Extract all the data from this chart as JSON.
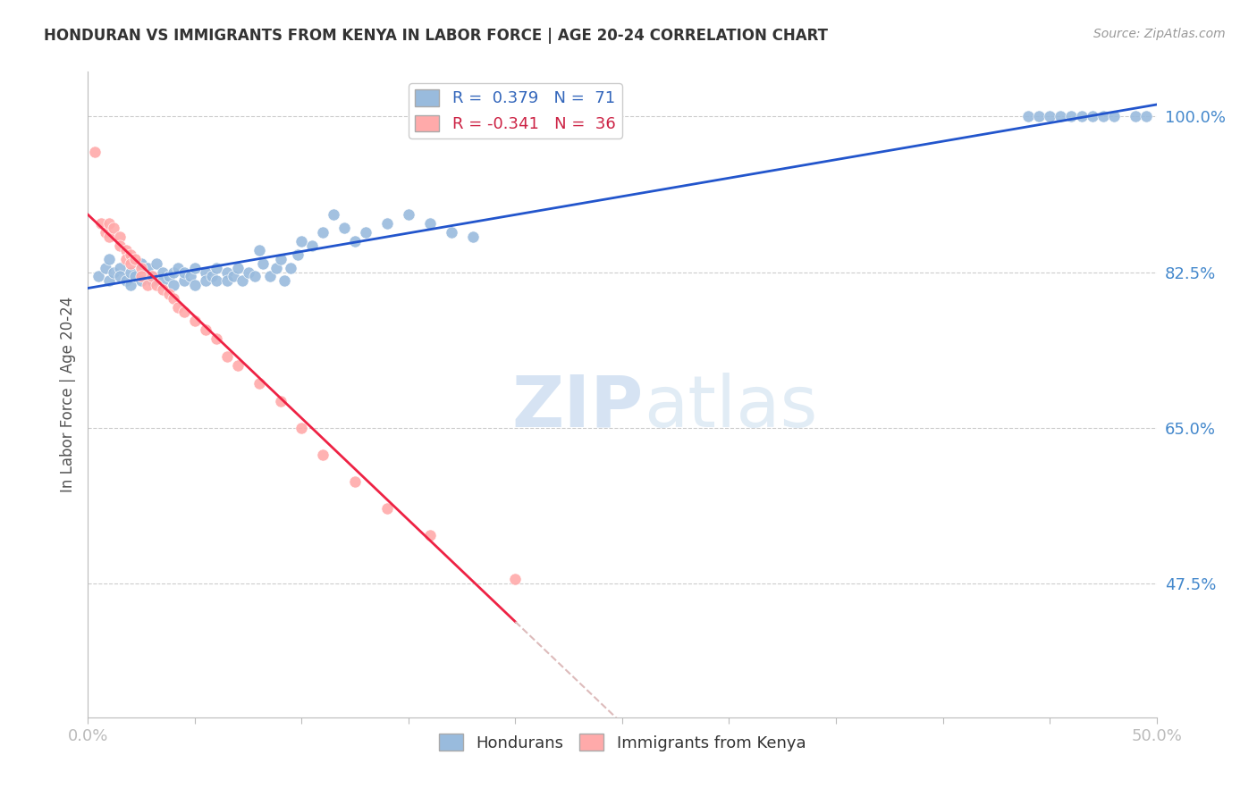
{
  "title": "HONDURAN VS IMMIGRANTS FROM KENYA IN LABOR FORCE | AGE 20-24 CORRELATION CHART",
  "source": "Source: ZipAtlas.com",
  "ylabel": "In Labor Force | Age 20-24",
  "xlim": [
    0.0,
    0.5
  ],
  "ylim": [
    0.325,
    1.05
  ],
  "yticks": [
    0.475,
    0.65,
    0.825,
    1.0
  ],
  "ytick_labels": [
    "47.5%",
    "65.0%",
    "82.5%",
    "100.0%"
  ],
  "xticks": [
    0.0,
    0.05,
    0.1,
    0.15,
    0.2,
    0.25,
    0.3,
    0.35,
    0.4,
    0.45,
    0.5
  ],
  "xtick_labels": [
    "0.0%",
    "",
    "",
    "",
    "",
    "",
    "",
    "",
    "",
    "",
    "50.0%"
  ],
  "legend_blue_label": "Hondurans",
  "legend_pink_label": "Immigrants from Kenya",
  "R_blue": 0.379,
  "N_blue": 71,
  "R_pink": -0.341,
  "N_pink": 36,
  "blue_color": "#99BBDD",
  "pink_color": "#FFAAAA",
  "blue_line_color": "#2255CC",
  "pink_line_color": "#EE2244",
  "pink_line_dash_color": "#DDBBBB",
  "watermark_zip": "ZIP",
  "watermark_atlas": "atlas",
  "blue_scatter_x": [
    0.005,
    0.008,
    0.01,
    0.01,
    0.012,
    0.015,
    0.015,
    0.018,
    0.02,
    0.02,
    0.022,
    0.025,
    0.025,
    0.028,
    0.03,
    0.03,
    0.032,
    0.035,
    0.035,
    0.038,
    0.04,
    0.04,
    0.042,
    0.045,
    0.045,
    0.048,
    0.05,
    0.05,
    0.055,
    0.055,
    0.058,
    0.06,
    0.06,
    0.065,
    0.065,
    0.068,
    0.07,
    0.072,
    0.075,
    0.078,
    0.08,
    0.082,
    0.085,
    0.088,
    0.09,
    0.092,
    0.095,
    0.098,
    0.1,
    0.105,
    0.11,
    0.115,
    0.12,
    0.125,
    0.13,
    0.14,
    0.15,
    0.16,
    0.17,
    0.18,
    0.44,
    0.445,
    0.45,
    0.455,
    0.46,
    0.465,
    0.47,
    0.475,
    0.48,
    0.49,
    0.495
  ],
  "blue_scatter_y": [
    0.82,
    0.83,
    0.815,
    0.84,
    0.825,
    0.83,
    0.82,
    0.815,
    0.81,
    0.825,
    0.82,
    0.835,
    0.815,
    0.83,
    0.82,
    0.815,
    0.835,
    0.825,
    0.815,
    0.82,
    0.825,
    0.81,
    0.83,
    0.815,
    0.825,
    0.82,
    0.81,
    0.83,
    0.825,
    0.815,
    0.82,
    0.83,
    0.815,
    0.825,
    0.815,
    0.82,
    0.83,
    0.815,
    0.825,
    0.82,
    0.85,
    0.835,
    0.82,
    0.83,
    0.84,
    0.815,
    0.83,
    0.845,
    0.86,
    0.855,
    0.87,
    0.89,
    0.875,
    0.86,
    0.87,
    0.88,
    0.89,
    0.88,
    0.87,
    0.865,
    1.0,
    1.0,
    1.0,
    1.0,
    1.0,
    1.0,
    1.0,
    1.0,
    1.0,
    1.0,
    1.0
  ],
  "pink_scatter_x": [
    0.003,
    0.006,
    0.008,
    0.01,
    0.01,
    0.012,
    0.015,
    0.015,
    0.018,
    0.018,
    0.02,
    0.02,
    0.022,
    0.025,
    0.025,
    0.028,
    0.03,
    0.032,
    0.035,
    0.038,
    0.04,
    0.042,
    0.045,
    0.05,
    0.055,
    0.06,
    0.065,
    0.07,
    0.08,
    0.09,
    0.1,
    0.11,
    0.125,
    0.14,
    0.16,
    0.2
  ],
  "pink_scatter_y": [
    0.96,
    0.88,
    0.87,
    0.88,
    0.865,
    0.875,
    0.865,
    0.855,
    0.85,
    0.84,
    0.845,
    0.835,
    0.84,
    0.83,
    0.82,
    0.81,
    0.82,
    0.81,
    0.805,
    0.8,
    0.795,
    0.785,
    0.78,
    0.77,
    0.76,
    0.75,
    0.73,
    0.72,
    0.7,
    0.68,
    0.65,
    0.62,
    0.59,
    0.56,
    0.53,
    0.48
  ]
}
